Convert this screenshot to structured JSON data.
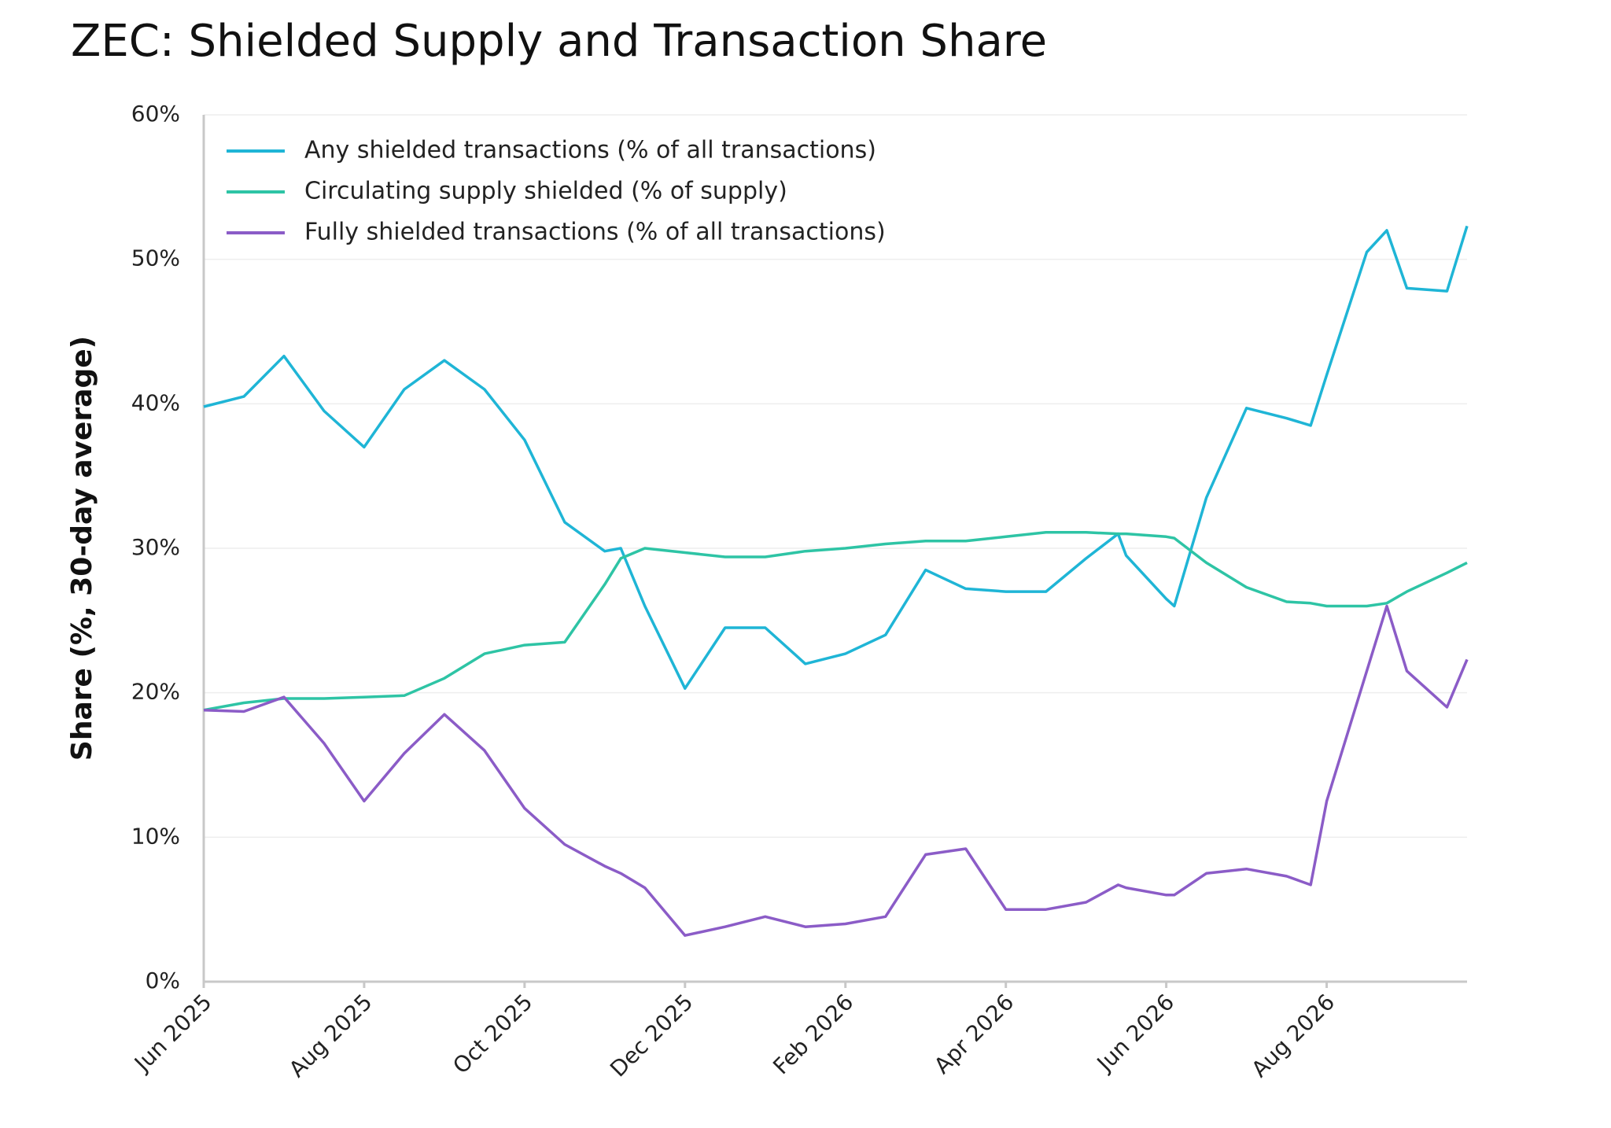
{
  "chart_data": {
    "type": "line",
    "title": "ZEC: Shielded Supply and Transaction Share",
    "y_label": "Share (%, 30-day average)",
    "x": [
      0,
      0.5,
      1,
      1.5,
      2,
      2.5,
      3,
      3.5,
      4,
      4.5,
      5,
      5.2,
      5.5,
      6,
      6.5,
      7,
      7.5,
      8,
      8.5,
      9,
      9.5,
      10,
      10.5,
      11,
      11.4,
      11.5,
      12,
      12.1,
      12.5,
      13,
      13.5,
      13.8,
      14,
      14.5,
      14.75,
      15,
      15.5,
      15.75
    ],
    "series": [
      {
        "name": "Any shielded transactions  (% of all transactions)",
        "color": "#1fb5d6",
        "values": [
          39.8,
          40.5,
          43.3,
          39.5,
          37,
          41,
          43,
          41,
          37.5,
          31.8,
          29.8,
          30,
          26,
          20.3,
          24.5,
          24.5,
          22,
          22.7,
          24,
          28.5,
          27.2,
          27,
          27,
          29.3,
          31,
          29.5,
          26.5,
          26,
          33.5,
          39.7,
          39,
          38.5,
          42,
          50.5,
          52,
          48,
          47.8,
          52.3
        ]
      },
      {
        "name": "Circulating supply shielded  (% of supply)",
        "color": "#2ec4a5",
        "values": [
          18.8,
          19.3,
          19.6,
          19.6,
          19.7,
          19.8,
          21,
          22.7,
          23.3,
          23.5,
          27.5,
          29.3,
          30,
          29.7,
          29.4,
          29.4,
          29.8,
          30,
          30.3,
          30.5,
          30.5,
          30.8,
          31.1,
          31.1,
          31,
          31,
          30.8,
          30.7,
          29,
          27.3,
          26.3,
          26.2,
          26,
          26,
          26.2,
          27,
          28.3,
          29
        ]
      },
      {
        "name": "Fully shielded transactions  (% of all transactions)",
        "color": "#8b5cc7",
        "values": [
          18.8,
          18.7,
          19.7,
          16.5,
          12.5,
          15.8,
          18.5,
          16,
          12,
          9.5,
          8,
          7.5,
          6.5,
          3.2,
          3.8,
          4.5,
          3.8,
          4,
          4.5,
          8.8,
          9.2,
          5,
          5,
          5.5,
          6.7,
          6.5,
          6,
          6,
          7.5,
          7.8,
          7.3,
          6.7,
          12.5,
          21.5,
          26,
          21.5,
          19,
          22.3
        ]
      }
    ],
    "xlim": [
      0,
      15.75
    ],
    "xticks": [
      {
        "value": 0,
        "label": "Jun 2025"
      },
      {
        "value": 2,
        "label": "Aug 2025"
      },
      {
        "value": 4,
        "label": "Oct 2025"
      },
      {
        "value": 6,
        "label": "Dec 2025"
      },
      {
        "value": 8,
        "label": "Feb 2026"
      },
      {
        "value": 10,
        "label": "Apr 2026"
      },
      {
        "value": 12,
        "label": "Jun 2026"
      },
      {
        "value": 14,
        "label": "Aug 2026"
      }
    ],
    "ylim": [
      0,
      60
    ],
    "yticks": [
      {
        "value": 0,
        "label": "0%"
      },
      {
        "value": 10,
        "label": "10%"
      },
      {
        "value": 20,
        "label": "20%"
      },
      {
        "value": 30,
        "label": "30%"
      },
      {
        "value": 40,
        "label": "40%"
      },
      {
        "value": 50,
        "label": "50%"
      },
      {
        "value": 60,
        "label": "60%"
      }
    ],
    "grid": true,
    "legend": "top-left"
  }
}
